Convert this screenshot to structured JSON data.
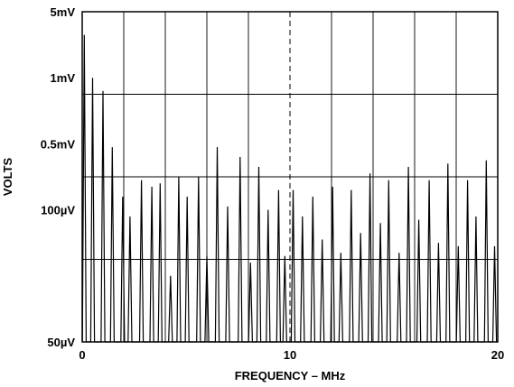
{
  "chart_data": {
    "type": "line",
    "title": "",
    "xlabel": "FREQUENCY – MHz",
    "ylabel": "VOLTS",
    "xlim": [
      0,
      20
    ],
    "ylim": [
      0,
      5
    ],
    "grid": true,
    "x_ticks": [
      {
        "value": 0,
        "label": "0"
      },
      {
        "value": 10,
        "label": "10"
      },
      {
        "value": 20,
        "label": "20"
      }
    ],
    "y_ticks": [
      {
        "value": 5,
        "label": "5mV"
      },
      {
        "value": 4,
        "label": "1mV"
      },
      {
        "value": 3,
        "label": "0.5mV"
      },
      {
        "value": 2,
        "label": "100µV"
      },
      {
        "value": 0,
        "label": "50µV"
      }
    ],
    "marker_line_x": 10,
    "baseline": 0,
    "series": [
      {
        "peaks": [
          [
            0.1,
            4.65
          ],
          [
            0.5,
            4.0
          ],
          [
            1.0,
            3.8
          ],
          [
            1.45,
            2.95
          ],
          [
            1.95,
            2.2
          ],
          [
            2.3,
            1.9
          ],
          [
            2.85,
            2.45
          ],
          [
            3.35,
            2.35
          ],
          [
            3.75,
            2.4
          ],
          [
            4.25,
            1.0
          ],
          [
            4.65,
            2.5
          ],
          [
            5.05,
            2.2
          ],
          [
            5.6,
            2.5
          ],
          [
            6.0,
            1.3
          ],
          [
            6.5,
            2.95
          ],
          [
            7.0,
            2.05
          ],
          [
            7.6,
            2.8
          ],
          [
            8.1,
            1.2
          ],
          [
            8.5,
            2.65
          ],
          [
            8.95,
            2.0
          ],
          [
            9.45,
            2.3
          ],
          [
            9.75,
            1.3
          ],
          [
            10.15,
            2.3
          ],
          [
            10.6,
            1.9
          ],
          [
            11.1,
            2.2
          ],
          [
            11.55,
            1.55
          ],
          [
            12.05,
            2.35
          ],
          [
            12.45,
            1.35
          ],
          [
            12.95,
            2.3
          ],
          [
            13.4,
            1.65
          ],
          [
            13.85,
            2.55
          ],
          [
            14.35,
            1.8
          ],
          [
            14.75,
            2.45
          ],
          [
            15.25,
            1.35
          ],
          [
            15.7,
            2.65
          ],
          [
            16.2,
            1.85
          ],
          [
            16.7,
            2.45
          ],
          [
            17.15,
            1.5
          ],
          [
            17.6,
            2.7
          ],
          [
            18.1,
            1.45
          ],
          [
            18.55,
            2.45
          ],
          [
            18.95,
            1.9
          ],
          [
            19.45,
            2.75
          ],
          [
            19.85,
            1.45
          ]
        ]
      }
    ]
  }
}
